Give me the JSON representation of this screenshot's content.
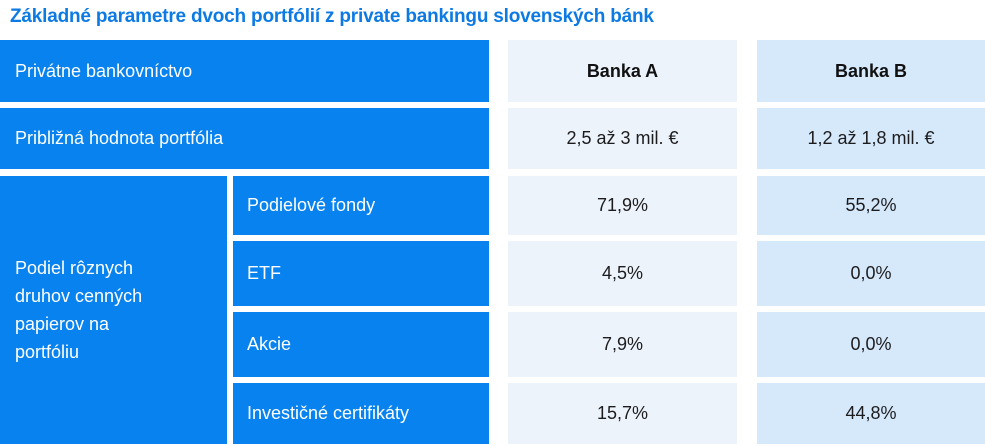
{
  "title": "Základné parametre dvoch portfólií z private bankingu slovenských bánk",
  "colors": {
    "primary_blue": "#0882ee",
    "title_blue": "#0d7ae3",
    "col_a_bg": "#edf3fb",
    "col_b_bg": "#d6e9fb",
    "value_text": "#1c1c1e"
  },
  "table": {
    "header": {
      "label": "Privátne bankovníctvo",
      "bank_a": "Banka A",
      "bank_b": "Banka B"
    },
    "rows": [
      {
        "label": "Približná hodnota portfólia",
        "bank_a": "2,5 až 3 mil. €",
        "bank_b": "1,2 až 1,8 mil. €"
      }
    ],
    "group": {
      "label": "Podiel rôznych druhov cenných papierov na portfóliu",
      "rows": [
        {
          "label": "Podielové fondy",
          "bank_a": "71,9%",
          "bank_b": "55,2%"
        },
        {
          "label": "ETF",
          "bank_a": "4,5%",
          "bank_b": "0,0%"
        },
        {
          "label": "Akcie",
          "bank_a": "7,9%",
          "bank_b": "0,0%"
        },
        {
          "label": "Investičné certifikáty",
          "bank_a": "15,7%",
          "bank_b": "44,8%"
        }
      ]
    }
  },
  "chart_data": {
    "type": "table",
    "title": "Základné parametre dvoch portfólií z private bankingu slovenských bánk",
    "columns": [
      "Privátne bankovníctvo",
      "Banka A",
      "Banka B"
    ],
    "rows": [
      [
        "Približná hodnota portfólia",
        "2,5 až 3 mil. €",
        "1,2 až 1,8 mil. €"
      ],
      [
        "Podiel rôznych druhov cenných papierov na portfóliu — Podielové fondy",
        "71,9%",
        "55,2%"
      ],
      [
        "Podiel rôznych druhov cenných papierov na portfóliu — ETF",
        "4,5%",
        "0,0%"
      ],
      [
        "Podiel rôznych druhov cenných papierov na portfóliu — Akcie",
        "7,9%",
        "0,0%"
      ],
      [
        "Podiel rôznych druhov cenných papierov na portfóliu — Investičné certifikáty",
        "15,7%",
        "44,8%"
      ]
    ],
    "series": [
      {
        "name": "Banka A",
        "values": [
          71.9,
          4.5,
          7.9,
          15.7
        ],
        "unit": "%"
      },
      {
        "name": "Banka B",
        "values": [
          55.2,
          0.0,
          0.0,
          44.8
        ],
        "unit": "%"
      }
    ],
    "categories": [
      "Podielové fondy",
      "ETF",
      "Akcie",
      "Investičné certifikáty"
    ]
  }
}
